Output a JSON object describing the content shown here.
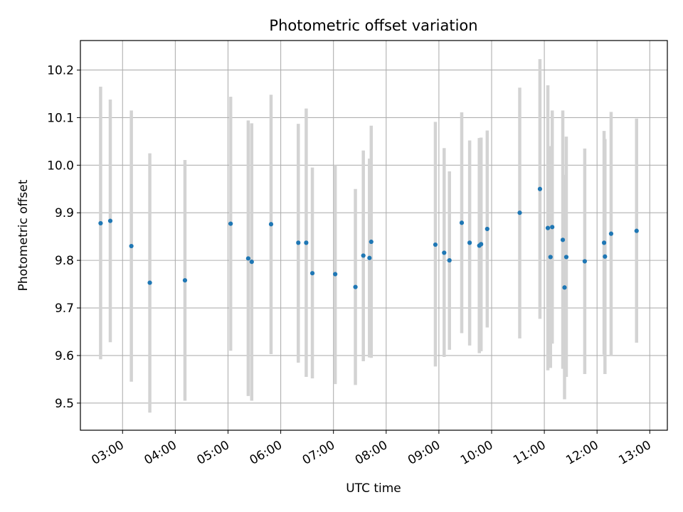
{
  "chart_data": {
    "type": "scatter",
    "title": "Photometric offset variation",
    "xlabel": "UTC time",
    "ylabel": "Photometric offset",
    "x_tick_labels": [
      "03:00",
      "04:00",
      "05:00",
      "06:00",
      "07:00",
      "08:00",
      "09:00",
      "10:00",
      "11:00",
      "12:00",
      "13:00"
    ],
    "y_tick_labels": [
      "9.5",
      "9.6",
      "9.7",
      "9.8",
      "9.9",
      "10.0",
      "10.1",
      "10.2"
    ],
    "xlim": [
      "02:12",
      "13:20"
    ],
    "ylim": [
      9.443,
      10.262
    ],
    "grid": true,
    "legend": "none",
    "colors": {
      "points": "#1f77b4",
      "error_bars": "#d3d3d3",
      "grid": "#b0b0b0"
    },
    "points": [
      {
        "x": "02:35",
        "y": 9.878,
        "low": 9.592,
        "high": 10.165
      },
      {
        "x": "02:46",
        "y": 9.883,
        "low": 9.628,
        "high": 10.138
      },
      {
        "x": "03:10",
        "y": 9.83,
        "low": 9.545,
        "high": 10.115
      },
      {
        "x": "03:31",
        "y": 9.753,
        "low": 9.48,
        "high": 10.025
      },
      {
        "x": "04:11",
        "y": 9.758,
        "low": 9.505,
        "high": 10.011
      },
      {
        "x": "05:03",
        "y": 9.877,
        "low": 9.61,
        "high": 10.144
      },
      {
        "x": "05:23",
        "y": 9.804,
        "low": 9.515,
        "high": 10.094
      },
      {
        "x": "05:27",
        "y": 9.797,
        "low": 9.505,
        "high": 10.088
      },
      {
        "x": "05:49",
        "y": 9.876,
        "low": 9.603,
        "high": 10.148
      },
      {
        "x": "06:20",
        "y": 9.837,
        "low": 9.585,
        "high": 10.087
      },
      {
        "x": "06:29",
        "y": 9.837,
        "low": 9.555,
        "high": 10.119
      },
      {
        "x": "06:36",
        "y": 9.773,
        "low": 9.552,
        "high": 9.995
      },
      {
        "x": "07:02",
        "y": 9.771,
        "low": 9.54,
        "high": 10.0
      },
      {
        "x": "07:25",
        "y": 9.744,
        "low": 9.538,
        "high": 9.95
      },
      {
        "x": "07:34",
        "y": 9.81,
        "low": 9.588,
        "high": 10.031
      },
      {
        "x": "07:41",
        "y": 9.805,
        "low": 9.596,
        "high": 10.014
      },
      {
        "x": "07:43",
        "y": 9.839,
        "low": 9.595,
        "high": 10.083
      },
      {
        "x": "08:56",
        "y": 9.833,
        "low": 9.577,
        "high": 10.091
      },
      {
        "x": "09:06",
        "y": 9.816,
        "low": 9.597,
        "high": 10.036
      },
      {
        "x": "09:12",
        "y": 9.8,
        "low": 9.612,
        "high": 9.987
      },
      {
        "x": "09:26",
        "y": 9.879,
        "low": 9.647,
        "high": 10.111
      },
      {
        "x": "09:35",
        "y": 9.837,
        "low": 9.621,
        "high": 10.052
      },
      {
        "x": "09:46",
        "y": 9.831,
        "low": 9.605,
        "high": 10.057
      },
      {
        "x": "09:48",
        "y": 9.834,
        "low": 9.609,
        "high": 10.058
      },
      {
        "x": "09:55",
        "y": 9.866,
        "low": 9.659,
        "high": 10.073
      },
      {
        "x": "10:32",
        "y": 9.9,
        "low": 9.636,
        "high": 10.163
      },
      {
        "x": "10:55",
        "y": 9.95,
        "low": 9.677,
        "high": 10.223
      },
      {
        "x": "11:04",
        "y": 9.868,
        "low": 9.569,
        "high": 10.168
      },
      {
        "x": "11:07",
        "y": 9.807,
        "low": 9.574,
        "high": 10.04
      },
      {
        "x": "11:09",
        "y": 9.87,
        "low": 9.625,
        "high": 10.115
      },
      {
        "x": "11:21",
        "y": 9.843,
        "low": 9.572,
        "high": 10.115
      },
      {
        "x": "11:23",
        "y": 9.743,
        "low": 9.508,
        "high": 9.98
      },
      {
        "x": "11:25",
        "y": 9.807,
        "low": 9.555,
        "high": 10.06
      },
      {
        "x": "11:46",
        "y": 9.798,
        "low": 9.561,
        "high": 10.035
      },
      {
        "x": "12:08",
        "y": 9.837,
        "low": 9.602,
        "high": 10.072
      },
      {
        "x": "12:09",
        "y": 9.808,
        "low": 9.561,
        "high": 10.055
      },
      {
        "x": "12:16",
        "y": 9.856,
        "low": 9.6,
        "high": 10.112
      },
      {
        "x": "12:45",
        "y": 9.862,
        "low": 9.627,
        "high": 10.098
      }
    ]
  }
}
